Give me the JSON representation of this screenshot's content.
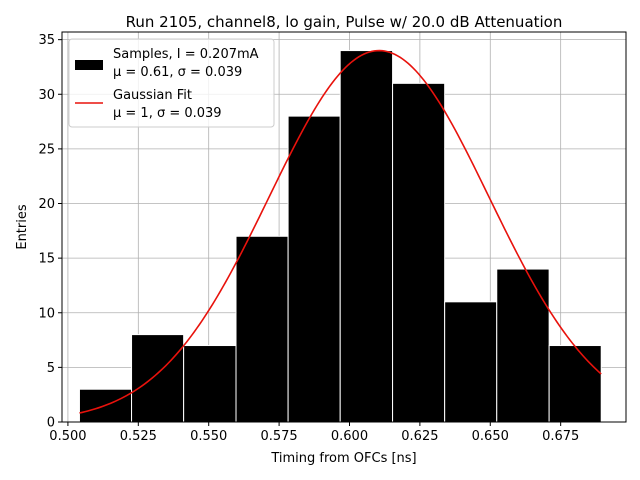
{
  "chart_data": {
    "type": "bar",
    "title": "Run 2105, channel8, lo gain, Pulse w/ 20.0 dB Attenuation",
    "xlabel": "Timing from OFCs [ns]",
    "ylabel": "Entries",
    "xlim": [
      0.4979,
      0.6982
    ],
    "ylim": [
      0,
      35.7
    ],
    "xticks": [
      "0.500",
      "0.525",
      "0.550",
      "0.575",
      "0.600",
      "0.625",
      "0.650",
      "0.675"
    ],
    "yticks": [
      "0",
      "5",
      "10",
      "15",
      "20",
      "25",
      "30",
      "35"
    ],
    "grid": true,
    "legend_position": "top-left",
    "bin_edges": [
      0.5041,
      0.5226,
      0.5411,
      0.5597,
      0.5782,
      0.5967,
      0.6153,
      0.6338,
      0.6523,
      0.6709,
      0.6894
    ],
    "values": [
      3,
      8,
      7,
      17,
      28,
      34,
      31,
      11,
      14,
      7
    ],
    "bar_color": "#000000",
    "fit_curve": {
      "mean": 0.6105,
      "sigma": 0.039,
      "peak": 34,
      "x_range": [
        0.5041,
        0.6894
      ],
      "color": "#e8120c"
    },
    "series": [
      {
        "name": "Samples, I = 0.207mA",
        "detail": "μ = 0.61, σ = 0.039",
        "color": "#000000"
      },
      {
        "name": "Gaussian Fit",
        "detail": "μ = 1, σ = 0.039",
        "color": "#e8120c"
      }
    ]
  }
}
